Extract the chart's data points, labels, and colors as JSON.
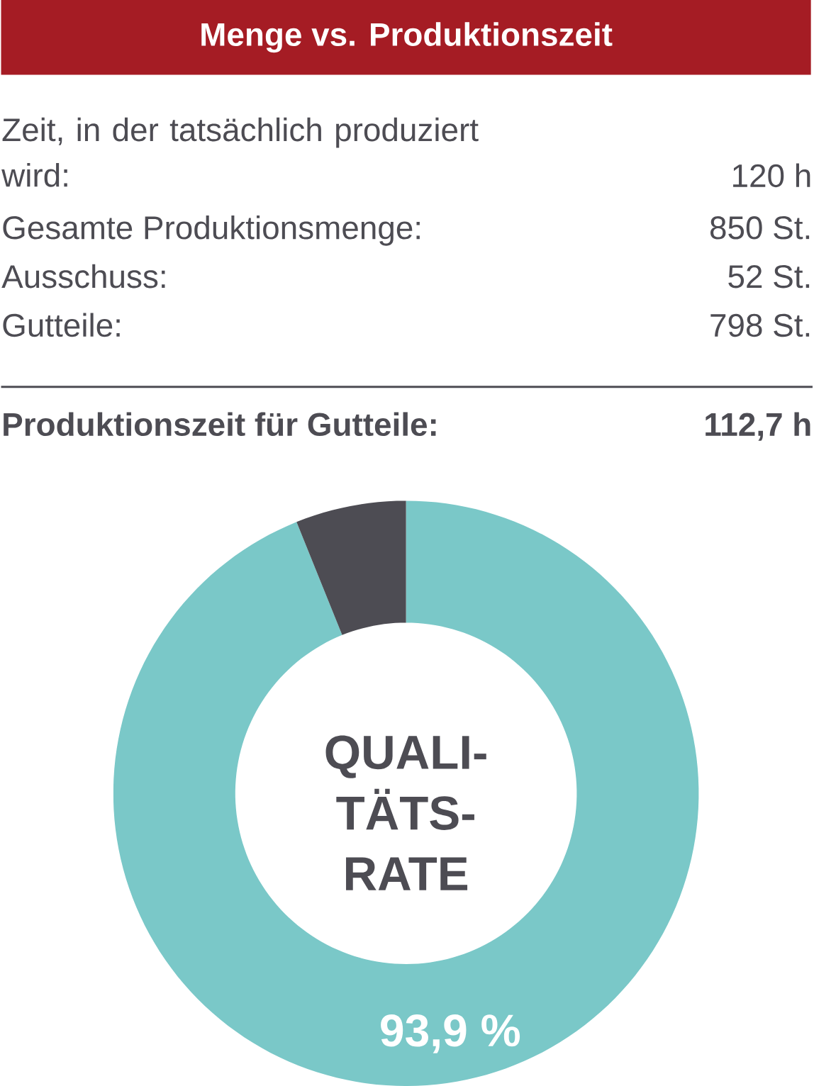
{
  "chart_data": {
    "type": "donut",
    "title": "Menge vs. Produktionszeit",
    "categories": [
      null,
      null
    ],
    "values": [
      93.9,
      6.1
    ],
    "colors": [
      "#7ac8c8",
      "#4d4c53"
    ],
    "value_labels": [
      "93,9 %",
      null
    ],
    "annotations": [
      "Zeit, in der tatsächlich produziert wird:",
      "120 h",
      "Gesamte Produktionsmenge:",
      "850 St.",
      "Ausschuss:",
      "52 St.",
      "Gutteile:",
      "798 St.",
      "Produktionszeit für Gutteile:",
      "112,7 h",
      "QUALI-TÄTS-RATE"
    ]
  }
}
